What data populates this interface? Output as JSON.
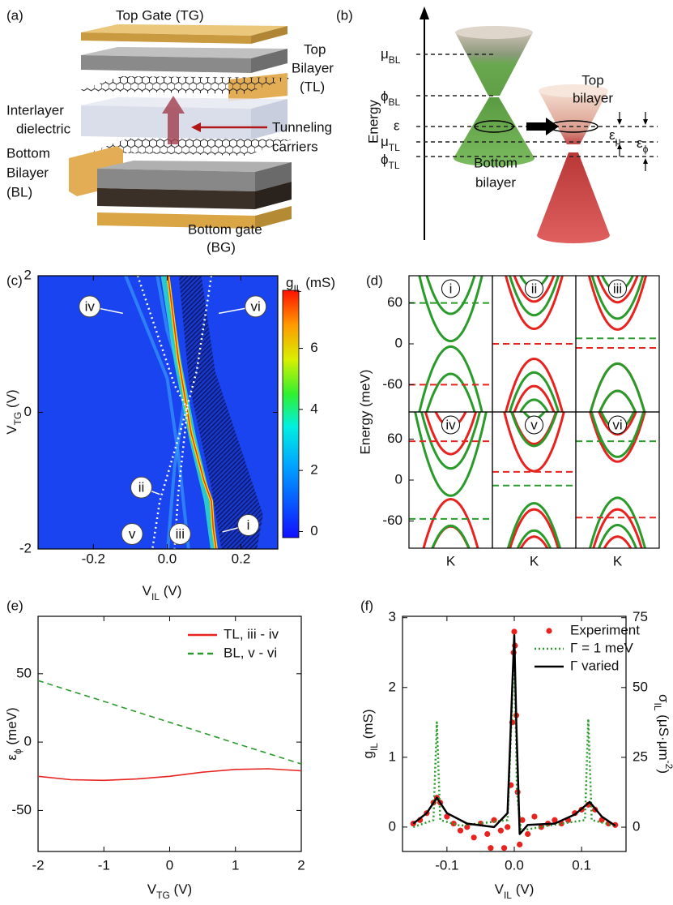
{
  "panels": {
    "a": {
      "label": "(a)",
      "top_gate": "Top Gate (TG)",
      "top_bilayer": [
        "Top",
        "Bilayer",
        "(TL)"
      ],
      "dielectric": [
        "Interlayer",
        "dielectric"
      ],
      "tunneling": [
        "Tunneling",
        "carriers"
      ],
      "bottom_bilayer": [
        "Bottom",
        "Bilayer",
        "(BL)"
      ],
      "bottom_gate": [
        "Bottom gate",
        "(BG)"
      ]
    },
    "b": {
      "label": "(b)",
      "axis_label": "Energy",
      "mu_bl": {
        "main": "μ",
        "sub": "BL"
      },
      "phi_bl": {
        "main": "ϕ",
        "sub": "BL"
      },
      "epsilon": "ε",
      "mu_tl": {
        "main": "μ",
        "sub": "TL"
      },
      "phi_tl": {
        "main": "ϕ",
        "sub": "TL"
      },
      "eps_mu": {
        "main": "ε",
        "sub": "μ"
      },
      "eps_phi": {
        "main": "ε",
        "sub": "ϕ"
      },
      "top": [
        "Top",
        "bilayer"
      ],
      "bottom": [
        "Bottom",
        "bilayer"
      ]
    }
  },
  "chart_data": [
    {
      "type": "heatmap",
      "label": "(c)",
      "xlabel": {
        "main": "V",
        "sub": "IL",
        "unit": " (V)"
      },
      "ylabel": {
        "main": "V",
        "sub": "TG",
        "unit": " (V)"
      },
      "xlim": [
        -0.35,
        0.3
      ],
      "xticks": [
        -0.2,
        {
          "value": 0,
          "label": "0.0"
        },
        0.2
      ],
      "ylim": [
        -2,
        2
      ],
      "yticks": [
        -2,
        0,
        2
      ],
      "colorbar": {
        "label": {
          "main": "g",
          "sub": "IL",
          "unit": " (mS)"
        },
        "lim": [
          -0.2,
          7.9
        ],
        "ticks": [
          0,
          2,
          4,
          6
        ]
      },
      "annotations": [
        "i",
        "ii",
        "iii",
        "iv",
        "v",
        "vi"
      ]
    },
    {
      "type": "bands",
      "label": "(d)",
      "ylabel": "Energy (meV)",
      "xlabel": "K",
      "ylim": [
        -100,
        100
      ],
      "yticks": [
        60,
        0,
        -60
      ],
      "colors": {
        "red": "#e8231f",
        "green": "#2a9b2a"
      },
      "subplots": [
        {
          "label": "i",
          "green_level": 60,
          "red_level": -60
        },
        {
          "label": "ii",
          "green_level": 0,
          "red_level": 0
        },
        {
          "label": "iii",
          "green_level": 8,
          "red_level": -6
        },
        {
          "label": "iv",
          "green_level": -57,
          "red_level": 57
        },
        {
          "label": "v",
          "green_level": -8,
          "red_level": 12
        },
        {
          "label": "vi",
          "green_level": 57,
          "red_level": -55
        }
      ]
    },
    {
      "type": "line",
      "label": "(e)",
      "xlabel": {
        "main": "V",
        "sub": "TG",
        "unit": " (V)"
      },
      "ylabel": {
        "main": "ε",
        "sub": "ϕ",
        "unit": " (meV)"
      },
      "xlim": [
        -2,
        2
      ],
      "xticks": [
        -2,
        -1,
        0,
        1,
        2
      ],
      "ylim": [
        -80,
        92
      ],
      "yticks": [
        -50,
        0,
        50
      ],
      "legend": "upper right",
      "x": [
        -2,
        -1.5,
        -1,
        -0.5,
        0,
        0.5,
        1,
        1.5,
        2
      ],
      "series": [
        {
          "name": "TL, iii - iv",
          "color": "#e8231f",
          "style": "solid",
          "values": [
            -25,
            -27.5,
            -28,
            -27,
            -25,
            -22,
            -20,
            -19.5,
            -21
          ]
        },
        {
          "name": "BL, v - vi",
          "color": "#2a9b2a",
          "style": "dashed",
          "values": [
            45,
            37.4,
            29.8,
            22.1,
            14.5,
            6.9,
            -0.8,
            -8.4,
            -16
          ]
        }
      ]
    },
    {
      "type": "line",
      "label": "(f)",
      "xlabel": {
        "main": "V",
        "sub": "IL",
        "unit": " (V)"
      },
      "ylabel": {
        "main": "g",
        "sub": "IL",
        "unit": " (mS)"
      },
      "y2label": {
        "main": "σ",
        "sub": "IL",
        "unit": " (μS·μm",
        "sup": "-2",
        "end": ")"
      },
      "xlim": [
        -0.166,
        0.166
      ],
      "xticks": [
        -0.1,
        {
          "value": 0,
          "label": "0.0"
        },
        0.1
      ],
      "ylim": [
        -0.35,
        3.02
      ],
      "yticks": [
        0,
        1,
        2,
        3
      ],
      "y2lim": [
        -8.7,
        75.5
      ],
      "y2ticks": [
        0,
        25,
        50,
        75
      ],
      "legend": "upper right",
      "series": [
        {
          "name": "Experiment",
          "color": "#e8231f",
          "style": "dots",
          "x": [
            -0.15,
            -0.14,
            -0.13,
            -0.12,
            -0.115,
            -0.11,
            -0.1,
            -0.09,
            -0.08,
            -0.07,
            -0.06,
            -0.05,
            -0.04,
            -0.035,
            -0.03,
            -0.02,
            -0.015,
            -0.01,
            -0.005,
            -0.003,
            -0.001,
            0,
            0.001,
            0.003,
            0.005,
            0.008,
            0.012,
            0.02,
            0.03,
            0.04,
            0.05,
            0.06,
            0.07,
            0.08,
            0.09,
            0.1,
            0.11,
            0.12,
            0.13,
            0.14,
            0.15
          ],
          "values": [
            0.05,
            0.1,
            0.2,
            0.35,
            0.42,
            0.35,
            0.15,
            0.05,
            -0.05,
            0,
            -0.15,
            0.05,
            -0.1,
            -0.3,
            0.1,
            -0.05,
            -0.3,
            0,
            0.6,
            1.5,
            2.5,
            2.8,
            2.6,
            1.6,
            0.5,
            -0.25,
            0.1,
            -0.1,
            0.15,
            0,
            0.05,
            0.1,
            0.05,
            0.1,
            0.2,
            0.25,
            0.32,
            0.25,
            0.1,
            0.05,
            0.03
          ]
        },
        {
          "name": "Γ = 1 meV",
          "color": "#2a9b2a",
          "style": "dotted",
          "x": [
            -0.15,
            -0.12,
            -0.115,
            -0.11,
            -0.08,
            -0.01,
            -0.003,
            0,
            0.004,
            0.01,
            0.05,
            0.105,
            0.11,
            0.115,
            0.15
          ],
          "values": [
            0,
            0.1,
            1.5,
            0.1,
            0.02,
            0.1,
            1.8,
            2.7,
            0.5,
            -0.05,
            0.02,
            0.1,
            1.55,
            0.1,
            0.02
          ]
        },
        {
          "name": "Γ varied",
          "color": "#000000",
          "style": "solid",
          "x": [
            -0.15,
            -0.13,
            -0.115,
            -0.1,
            -0.07,
            -0.03,
            -0.01,
            -0.003,
            0,
            0.003,
            0.008,
            0.02,
            0.06,
            0.09,
            0.112,
            0.13,
            0.15
          ],
          "values": [
            0.05,
            0.2,
            0.42,
            0.2,
            0.05,
            0,
            0.2,
            2,
            2.75,
            1.5,
            -0.1,
            0.03,
            0.05,
            0.18,
            0.36,
            0.15,
            0.02
          ]
        }
      ]
    }
  ]
}
